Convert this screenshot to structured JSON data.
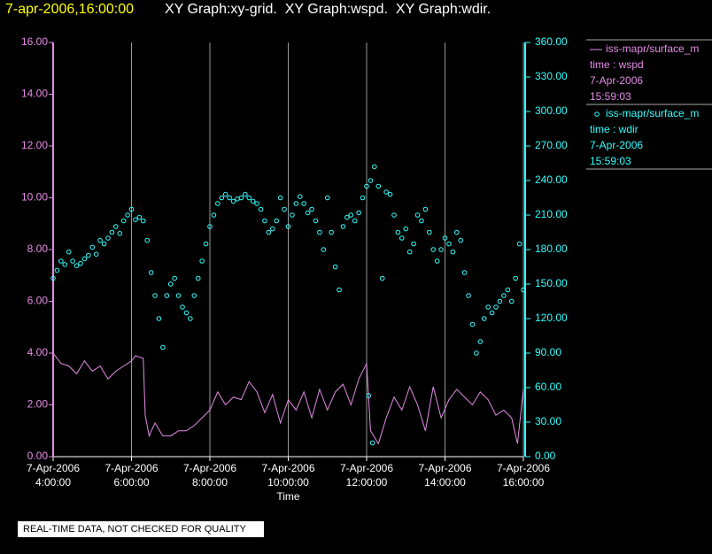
{
  "header": {
    "timestamp": "7-apr-2006,16:00:00",
    "graphs": "XY Graph:xy-grid.  XY Graph:wspd.  XY Graph:wdir."
  },
  "chart_data": {
    "type": "line",
    "xlabel": "Time",
    "xlim": [
      4,
      16
    ],
    "xticks": [
      {
        "value": 4,
        "label": "4:00:00",
        "date": "7-Apr-2006"
      },
      {
        "value": 6,
        "label": "6:00:00",
        "date": "7-Apr-2006"
      },
      {
        "value": 8,
        "label": "8:00:00",
        "date": "7-Apr-2006"
      },
      {
        "value": 10,
        "label": "10:00:00",
        "date": "7-Apr-2006"
      },
      {
        "value": 12,
        "label": "12:00:00",
        "date": "7-Apr-2006"
      },
      {
        "value": 14,
        "label": "14:00:00",
        "date": "7-Apr-2006"
      },
      {
        "value": 16,
        "label": "16:00:00",
        "date": "7-Apr-2006"
      }
    ],
    "xgrid": true,
    "ylim": [
      0,
      16
    ],
    "yticks": [
      {
        "value": 0,
        "label": "0.00"
      },
      {
        "value": 2,
        "label": "2.00"
      },
      {
        "value": 4,
        "label": "4.00"
      },
      {
        "value": 6,
        "label": "6.00"
      },
      {
        "value": 8,
        "label": "8.00"
      },
      {
        "value": 10,
        "label": "10.00"
      },
      {
        "value": 12,
        "label": "12.00"
      },
      {
        "value": 14,
        "label": "14.00"
      },
      {
        "value": 16,
        "label": "16.00"
      }
    ],
    "y2lim": [
      0,
      360
    ],
    "y2ticks": [
      {
        "value": 0,
        "label": "0.00"
      },
      {
        "value": 30,
        "label": "30.00"
      },
      {
        "value": 60,
        "label": "60.00"
      },
      {
        "value": 90,
        "label": "90.00"
      },
      {
        "value": 120,
        "label": "120.00"
      },
      {
        "value": 150,
        "label": "150.00"
      },
      {
        "value": 180,
        "label": "180.00"
      },
      {
        "value": 210,
        "label": "210.00"
      },
      {
        "value": 240,
        "label": "240.00"
      },
      {
        "value": 270,
        "label": "270.00"
      },
      {
        "value": 300,
        "label": "300.00"
      },
      {
        "value": 330,
        "label": "330.00"
      },
      {
        "value": 360,
        "label": "360.00"
      }
    ],
    "series": [
      {
        "name": "iss-mapr/surface_m",
        "field": "time : wspd",
        "date": "7-Apr-2006",
        "time": "15:59:03",
        "type": "line",
        "color": "#e58ce5",
        "axis": "y",
        "x": [
          4.0,
          4.2,
          4.4,
          4.6,
          4.8,
          5.0,
          5.2,
          5.4,
          5.6,
          5.8,
          6.0,
          6.1,
          6.3,
          6.35,
          6.45,
          6.6,
          6.8,
          7.0,
          7.2,
          7.4,
          7.6,
          7.8,
          8.0,
          8.2,
          8.4,
          8.6,
          8.8,
          9.0,
          9.2,
          9.4,
          9.6,
          9.8,
          10.0,
          10.2,
          10.4,
          10.6,
          10.8,
          11.0,
          11.2,
          11.4,
          11.6,
          11.8,
          12.0,
          12.1,
          12.3,
          12.5,
          12.7,
          12.9,
          13.1,
          13.3,
          13.5,
          13.7,
          13.9,
          14.1,
          14.3,
          14.5,
          14.7,
          14.9,
          15.1,
          15.3,
          15.5,
          15.7,
          15.85,
          16.0
        ],
        "values": [
          4.0,
          3.6,
          3.5,
          3.2,
          3.7,
          3.3,
          3.5,
          3.0,
          3.3,
          3.5,
          3.7,
          3.9,
          3.8,
          1.6,
          0.8,
          1.3,
          0.8,
          0.8,
          1.0,
          1.0,
          1.2,
          1.5,
          1.8,
          2.5,
          2.0,
          2.3,
          2.2,
          2.9,
          2.5,
          1.7,
          2.4,
          1.3,
          2.2,
          1.8,
          2.5,
          1.5,
          2.6,
          1.8,
          2.5,
          2.8,
          2.0,
          3.0,
          3.6,
          1.0,
          0.5,
          1.5,
          2.3,
          1.8,
          2.7,
          2.0,
          1.0,
          2.7,
          1.5,
          2.2,
          2.6,
          2.3,
          2.0,
          2.5,
          2.2,
          1.6,
          1.8,
          1.5,
          0.5,
          2.6
        ]
      },
      {
        "name": "iss-mapr/surface_m",
        "field": "time : wdir",
        "date": "7-Apr-2006",
        "time": "15:59:03",
        "type": "scatter",
        "color": "#33ffff",
        "axis": "y2",
        "x": [
          4.0,
          4.1,
          4.2,
          4.3,
          4.4,
          4.5,
          4.6,
          4.7,
          4.8,
          4.9,
          5.0,
          5.1,
          5.2,
          5.3,
          5.4,
          5.5,
          5.6,
          5.7,
          5.8,
          5.9,
          6.0,
          6.1,
          6.2,
          6.3,
          6.4,
          6.5,
          6.6,
          6.7,
          6.8,
          6.9,
          7.0,
          7.1,
          7.2,
          7.3,
          7.4,
          7.5,
          7.6,
          7.7,
          7.8,
          7.9,
          8.0,
          8.1,
          8.2,
          8.3,
          8.4,
          8.5,
          8.6,
          8.7,
          8.8,
          8.9,
          9.0,
          9.1,
          9.2,
          9.3,
          9.4,
          9.5,
          9.6,
          9.7,
          9.8,
          9.9,
          10.0,
          10.1,
          10.2,
          10.3,
          10.4,
          10.5,
          10.6,
          10.7,
          10.8,
          10.9,
          11.0,
          11.1,
          11.2,
          11.3,
          11.4,
          11.5,
          11.6,
          11.7,
          11.8,
          11.9,
          12.0,
          12.05,
          12.1,
          12.15,
          12.2,
          12.3,
          12.4,
          12.5,
          12.6,
          12.7,
          12.8,
          12.9,
          13.0,
          13.1,
          13.2,
          13.3,
          13.4,
          13.5,
          13.6,
          13.7,
          13.8,
          13.9,
          14.0,
          14.1,
          14.2,
          14.3,
          14.4,
          14.5,
          14.6,
          14.7,
          14.8,
          14.9,
          15.0,
          15.1,
          15.2,
          15.3,
          15.4,
          15.5,
          15.6,
          15.7,
          15.8,
          15.9,
          16.0
        ],
        "values": [
          155,
          162,
          170,
          167,
          178,
          170,
          166,
          168,
          172,
          175,
          182,
          176,
          188,
          185,
          190,
          195,
          200,
          194,
          205,
          210,
          215,
          206,
          208,
          205,
          188,
          160,
          140,
          120,
          95,
          140,
          150,
          155,
          140,
          130,
          125,
          120,
          140,
          155,
          170,
          185,
          200,
          210,
          220,
          225,
          228,
          225,
          222,
          224,
          225,
          228,
          225,
          222,
          220,
          215,
          205,
          195,
          198,
          205,
          225,
          215,
          200,
          210,
          220,
          226,
          220,
          212,
          215,
          205,
          195,
          180,
          225,
          195,
          165,
          145,
          200,
          208,
          210,
          205,
          212,
          225,
          235,
          53,
          240,
          12,
          252,
          235,
          155,
          230,
          228,
          210,
          195,
          190,
          198,
          178,
          185,
          210,
          205,
          215,
          195,
          180,
          170,
          180,
          190,
          185,
          178,
          195,
          188,
          160,
          140,
          115,
          90,
          100,
          120,
          130,
          125,
          130,
          135,
          140,
          145,
          135,
          155,
          185,
          145
        ]
      }
    ]
  },
  "footer": {
    "notice": "REAL-TIME DATA, NOT CHECKED FOR QUALITY"
  }
}
